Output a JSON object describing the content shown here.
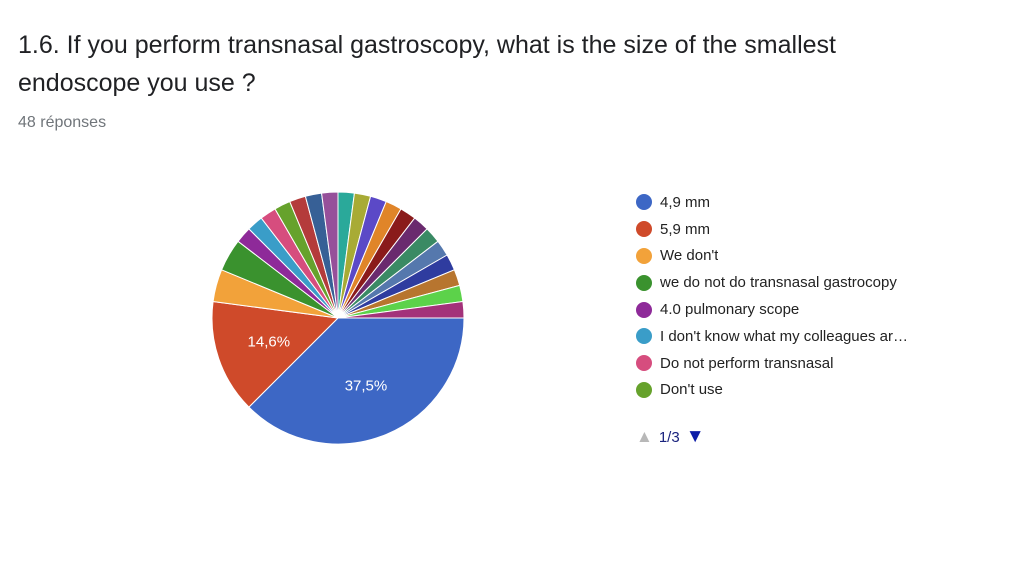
{
  "header": {
    "title": "1.6. If you perform transnasal gastroscopy, what is the size of the smallest endoscope you use ?",
    "response_count": "48 réponses"
  },
  "legend": {
    "page_label": "1/3"
  },
  "chart_data": {
    "type": "pie",
    "total_responses": 48,
    "slices": [
      {
        "label": "4,9 mm",
        "value": 18,
        "percent_label": "37,5%",
        "color": "#3d67c5"
      },
      {
        "label": "5,9 mm",
        "value": 7,
        "percent_label": "14,6%",
        "color": "#cf4a2a"
      },
      {
        "label": "We don't",
        "value": 2,
        "percent_label": "",
        "color": "#f2a23a"
      },
      {
        "label": "we do not do transnasal gastrocopy",
        "value": 2,
        "percent_label": "",
        "color": "#3a922e"
      },
      {
        "label": "4.0 pulmonary scope",
        "value": 1,
        "percent_label": "",
        "color": "#8e2a99"
      },
      {
        "label": "I don't know what my colleagues ar…",
        "value": 1,
        "percent_label": "",
        "color": "#3a9dc8"
      },
      {
        "label": "Do not perform transnasal",
        "value": 1,
        "percent_label": "",
        "color": "#d64d7e"
      },
      {
        "label": "Don't use",
        "value": 1,
        "percent_label": "",
        "color": "#66a22c"
      },
      {
        "label": "",
        "value": 1,
        "percent_label": "",
        "color": "#b43b3b"
      },
      {
        "label": "",
        "value": 1,
        "percent_label": "",
        "color": "#376096"
      },
      {
        "label": "",
        "value": 1,
        "percent_label": "",
        "color": "#96509a"
      },
      {
        "label": "",
        "value": 1,
        "percent_label": "",
        "color": "#2aa99a"
      },
      {
        "label": "",
        "value": 1,
        "percent_label": "",
        "color": "#a8ab35"
      },
      {
        "label": "",
        "value": 1,
        "percent_label": "",
        "color": "#5b49c7"
      },
      {
        "label": "",
        "value": 1,
        "percent_label": "",
        "color": "#e08529"
      },
      {
        "label": "",
        "value": 1,
        "percent_label": "",
        "color": "#8a1b1b"
      },
      {
        "label": "",
        "value": 1,
        "percent_label": "",
        "color": "#6a2a6e"
      },
      {
        "label": "",
        "value": 1,
        "percent_label": "",
        "color": "#3a8a64"
      },
      {
        "label": "",
        "value": 1,
        "percent_label": "",
        "color": "#5578ad"
      },
      {
        "label": "",
        "value": 1,
        "percent_label": "",
        "color": "#2f3c9f"
      },
      {
        "label": "",
        "value": 1,
        "percent_label": "",
        "color": "#b7752f"
      },
      {
        "label": "",
        "value": 1,
        "percent_label": "",
        "color": "#5cd24a"
      },
      {
        "label": "",
        "value": 1,
        "percent_label": "",
        "color": "#a3327a"
      }
    ],
    "legend_placement": "right",
    "legend_visible_count": 8
  }
}
